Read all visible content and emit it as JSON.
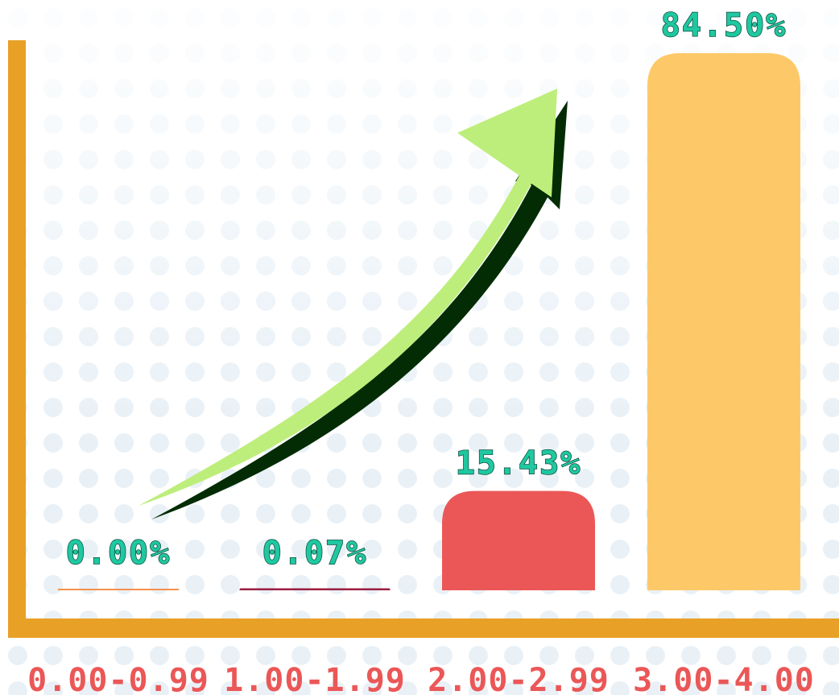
{
  "chart_data": {
    "type": "bar",
    "categories": [
      "0.00-0.99",
      "1.00-1.99",
      "2.00-2.99",
      "3.00-4.00"
    ],
    "values": [
      0.0,
      0.07,
      15.43,
      84.5
    ],
    "value_labels": [
      "0.00%",
      "0.07%",
      "15.43%",
      "84.50%"
    ],
    "colors": [
      "#f4914c",
      "#9b1f42",
      "#eb5757",
      "#fdc968"
    ],
    "label_color": "#1fc8a0",
    "category_color": "#eb5757",
    "axis_color": "#e8a027"
  }
}
